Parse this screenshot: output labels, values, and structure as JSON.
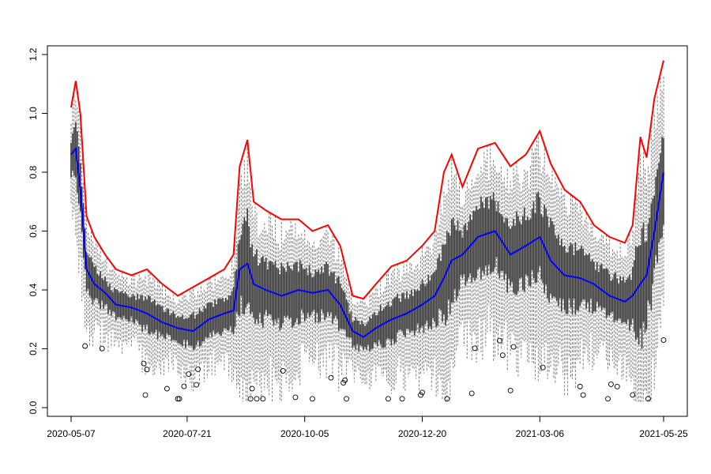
{
  "chart_data": {
    "type": "boxplot",
    "title": "",
    "xlabel": "",
    "ylabel": "",
    "x_range": [
      "2020-05-07",
      "2021-05-25"
    ],
    "ylim": [
      0.0,
      1.2
    ],
    "x_ticks": [
      "2020-05-07",
      "2020-07-21",
      "2020-10-05",
      "2020-12-20",
      "2021-03-06",
      "2021-05-25"
    ],
    "y_ticks": [
      "0.0",
      "0.2",
      "0.4",
      "0.6",
      "0.8",
      "1.0",
      "1.2"
    ],
    "grid": false,
    "legend": "none",
    "colors": {
      "upper_envelope": "#ff0000",
      "median_line": "#0000ff",
      "box_body": "#333333",
      "whisker": "#7f7f7f",
      "outlier": "#000000"
    },
    "series": [
      {
        "role": "daily maximum (red line)",
        "points": [
          [
            "2020-05-07",
            1.02
          ],
          [
            "2020-05-10",
            1.11
          ],
          [
            "2020-05-13",
            1.0
          ],
          [
            "2020-05-17",
            0.65
          ],
          [
            "2020-05-22",
            0.58
          ],
          [
            "2020-05-29",
            0.52
          ],
          [
            "2020-06-05",
            0.47
          ],
          [
            "2020-06-15",
            0.45
          ],
          [
            "2020-06-25",
            0.47
          ],
          [
            "2020-07-05",
            0.42
          ],
          [
            "2020-07-15",
            0.38
          ],
          [
            "2020-07-25",
            0.41
          ],
          [
            "2020-08-04",
            0.44
          ],
          [
            "2020-08-14",
            0.47
          ],
          [
            "2020-08-20",
            0.52
          ],
          [
            "2020-08-24",
            0.82
          ],
          [
            "2020-08-29",
            0.91
          ],
          [
            "2020-09-02",
            0.7
          ],
          [
            "2020-09-10",
            0.67
          ],
          [
            "2020-09-20",
            0.64
          ],
          [
            "2020-10-01",
            0.64
          ],
          [
            "2020-10-10",
            0.6
          ],
          [
            "2020-10-20",
            0.62
          ],
          [
            "2020-10-28",
            0.55
          ],
          [
            "2020-11-05",
            0.38
          ],
          [
            "2020-11-12",
            0.37
          ],
          [
            "2020-11-20",
            0.42
          ],
          [
            "2020-11-30",
            0.48
          ],
          [
            "2020-12-10",
            0.5
          ],
          [
            "2020-12-20",
            0.55
          ],
          [
            "2020-12-28",
            0.6
          ],
          [
            "2021-01-03",
            0.8
          ],
          [
            "2021-01-08",
            0.86
          ],
          [
            "2021-01-15",
            0.75
          ],
          [
            "2021-01-25",
            0.88
          ],
          [
            "2021-02-05",
            0.9
          ],
          [
            "2021-02-15",
            0.82
          ],
          [
            "2021-02-25",
            0.86
          ],
          [
            "2021-03-06",
            0.94
          ],
          [
            "2021-03-13",
            0.83
          ],
          [
            "2021-03-22",
            0.74
          ],
          [
            "2021-04-01",
            0.7
          ],
          [
            "2021-04-10",
            0.62
          ],
          [
            "2021-04-20",
            0.58
          ],
          [
            "2021-04-30",
            0.56
          ],
          [
            "2021-05-05",
            0.62
          ],
          [
            "2021-05-10",
            0.92
          ],
          [
            "2021-05-14",
            0.85
          ],
          [
            "2021-05-19",
            1.05
          ],
          [
            "2021-05-25",
            1.18
          ]
        ]
      },
      {
        "role": "daily median (blue line)",
        "points": [
          [
            "2020-05-07",
            0.86
          ],
          [
            "2020-05-10",
            0.88
          ],
          [
            "2020-05-13",
            0.75
          ],
          [
            "2020-05-17",
            0.47
          ],
          [
            "2020-05-22",
            0.42
          ],
          [
            "2020-05-29",
            0.39
          ],
          [
            "2020-06-05",
            0.35
          ],
          [
            "2020-06-15",
            0.34
          ],
          [
            "2020-06-25",
            0.32
          ],
          [
            "2020-07-05",
            0.29
          ],
          [
            "2020-07-15",
            0.27
          ],
          [
            "2020-07-25",
            0.26
          ],
          [
            "2020-08-04",
            0.3
          ],
          [
            "2020-08-14",
            0.32
          ],
          [
            "2020-08-20",
            0.33
          ],
          [
            "2020-08-24",
            0.47
          ],
          [
            "2020-08-29",
            0.49
          ],
          [
            "2020-09-02",
            0.42
          ],
          [
            "2020-09-10",
            0.4
          ],
          [
            "2020-09-20",
            0.38
          ],
          [
            "2020-10-01",
            0.4
          ],
          [
            "2020-10-10",
            0.39
          ],
          [
            "2020-10-20",
            0.4
          ],
          [
            "2020-10-28",
            0.35
          ],
          [
            "2020-11-05",
            0.26
          ],
          [
            "2020-11-12",
            0.24
          ],
          [
            "2020-11-20",
            0.27
          ],
          [
            "2020-11-30",
            0.3
          ],
          [
            "2020-12-10",
            0.32
          ],
          [
            "2020-12-20",
            0.35
          ],
          [
            "2020-12-28",
            0.38
          ],
          [
            "2021-01-03",
            0.44
          ],
          [
            "2021-01-08",
            0.5
          ],
          [
            "2021-01-15",
            0.52
          ],
          [
            "2021-01-25",
            0.58
          ],
          [
            "2021-02-05",
            0.6
          ],
          [
            "2021-02-15",
            0.52
          ],
          [
            "2021-02-25",
            0.55
          ],
          [
            "2021-03-06",
            0.58
          ],
          [
            "2021-03-13",
            0.5
          ],
          [
            "2021-03-22",
            0.45
          ],
          [
            "2021-04-01",
            0.44
          ],
          [
            "2021-04-10",
            0.42
          ],
          [
            "2021-04-20",
            0.38
          ],
          [
            "2021-04-30",
            0.36
          ],
          [
            "2021-05-05",
            0.38
          ],
          [
            "2021-05-10",
            0.42
          ],
          [
            "2021-05-14",
            0.45
          ],
          [
            "2021-05-19",
            0.6
          ],
          [
            "2021-05-25",
            0.8
          ]
        ]
      }
    ]
  }
}
